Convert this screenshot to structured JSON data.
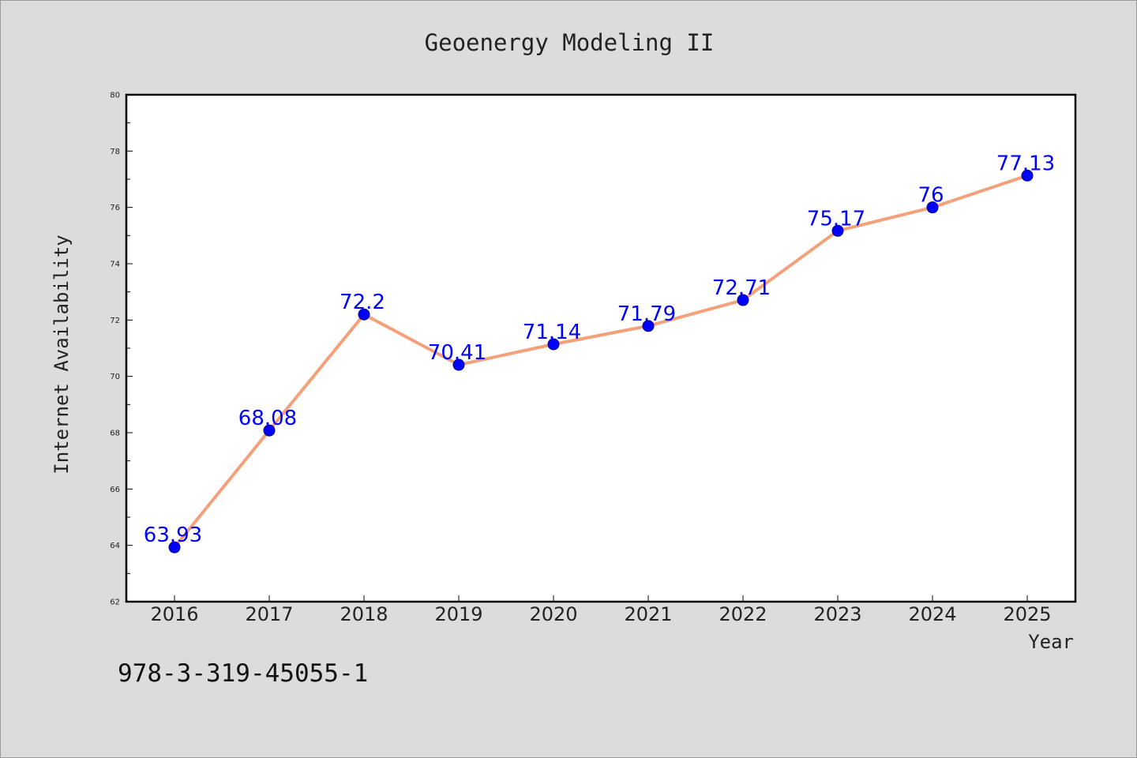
{
  "footer": {
    "code": "978-3-319-45055-1"
  },
  "chart_data": {
    "type": "line",
    "title": "Geoenergy Modeling II",
    "xlabel": "Year",
    "ylabel": "Internet Availability",
    "ylim": [
      62,
      80
    ],
    "yticks": [
      62,
      64,
      66,
      68,
      70,
      72,
      74,
      76,
      78,
      80
    ],
    "grid": false,
    "categories": [
      "2016",
      "2017",
      "2018",
      "2019",
      "2020",
      "2021",
      "2022",
      "2023",
      "2024",
      "2025"
    ],
    "series": [
      {
        "values": [
          63.93,
          68.08,
          72.2,
          70.41,
          71.14,
          71.79,
          72.71,
          75.17,
          76,
          77.13
        ],
        "line_color": "#f4a07a",
        "marker_color": "#0000ff"
      }
    ],
    "data_labels": [
      "63.93",
      "68.08",
      "72.2",
      "70.41",
      "71.14",
      "71.79",
      "72.71",
      "75.17",
      "76",
      "77.13"
    ]
  }
}
